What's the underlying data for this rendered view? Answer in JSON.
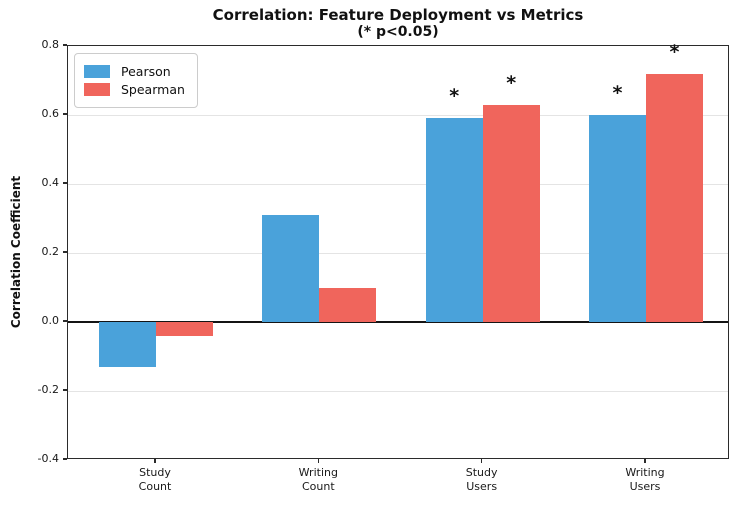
{
  "title": "Correlation: Feature Deployment vs Metrics",
  "subtitle": "(* p<0.05)",
  "chart_data": {
    "type": "bar",
    "title": "Correlation: Feature Deployment vs Metrics",
    "subtitle": "(* p<0.05)",
    "categories": [
      "Study\nCount",
      "Writing\nCount",
      "Study\nUsers",
      "Writing\nUsers"
    ],
    "series": [
      {
        "name": "Pearson",
        "color": "#4AA2DA",
        "values": [
          -0.13,
          0.31,
          0.59,
          0.6
        ],
        "significant": [
          false,
          false,
          true,
          true
        ]
      },
      {
        "name": "Spearman",
        "color": "#F0655C",
        "values": [
          -0.04,
          0.1,
          0.63,
          0.72
        ],
        "significant": [
          false,
          false,
          true,
          true
        ]
      }
    ],
    "xlabel": "",
    "ylabel": "Correlation Coefficient",
    "ylim": [
      -0.4,
      0.8
    ],
    "ytick_values": [
      0.8,
      0.6,
      0.4,
      0.2,
      0.0,
      -0.2,
      -0.4
    ],
    "yticklabels": [
      "0.8",
      "0.6",
      "0.4",
      "0.2",
      "0.0",
      "-0.2",
      "-0.4"
    ],
    "grid": "horizontal",
    "legend_position": "upper-left",
    "significance_marker": "*",
    "significance_note": "* p<0.05"
  }
}
